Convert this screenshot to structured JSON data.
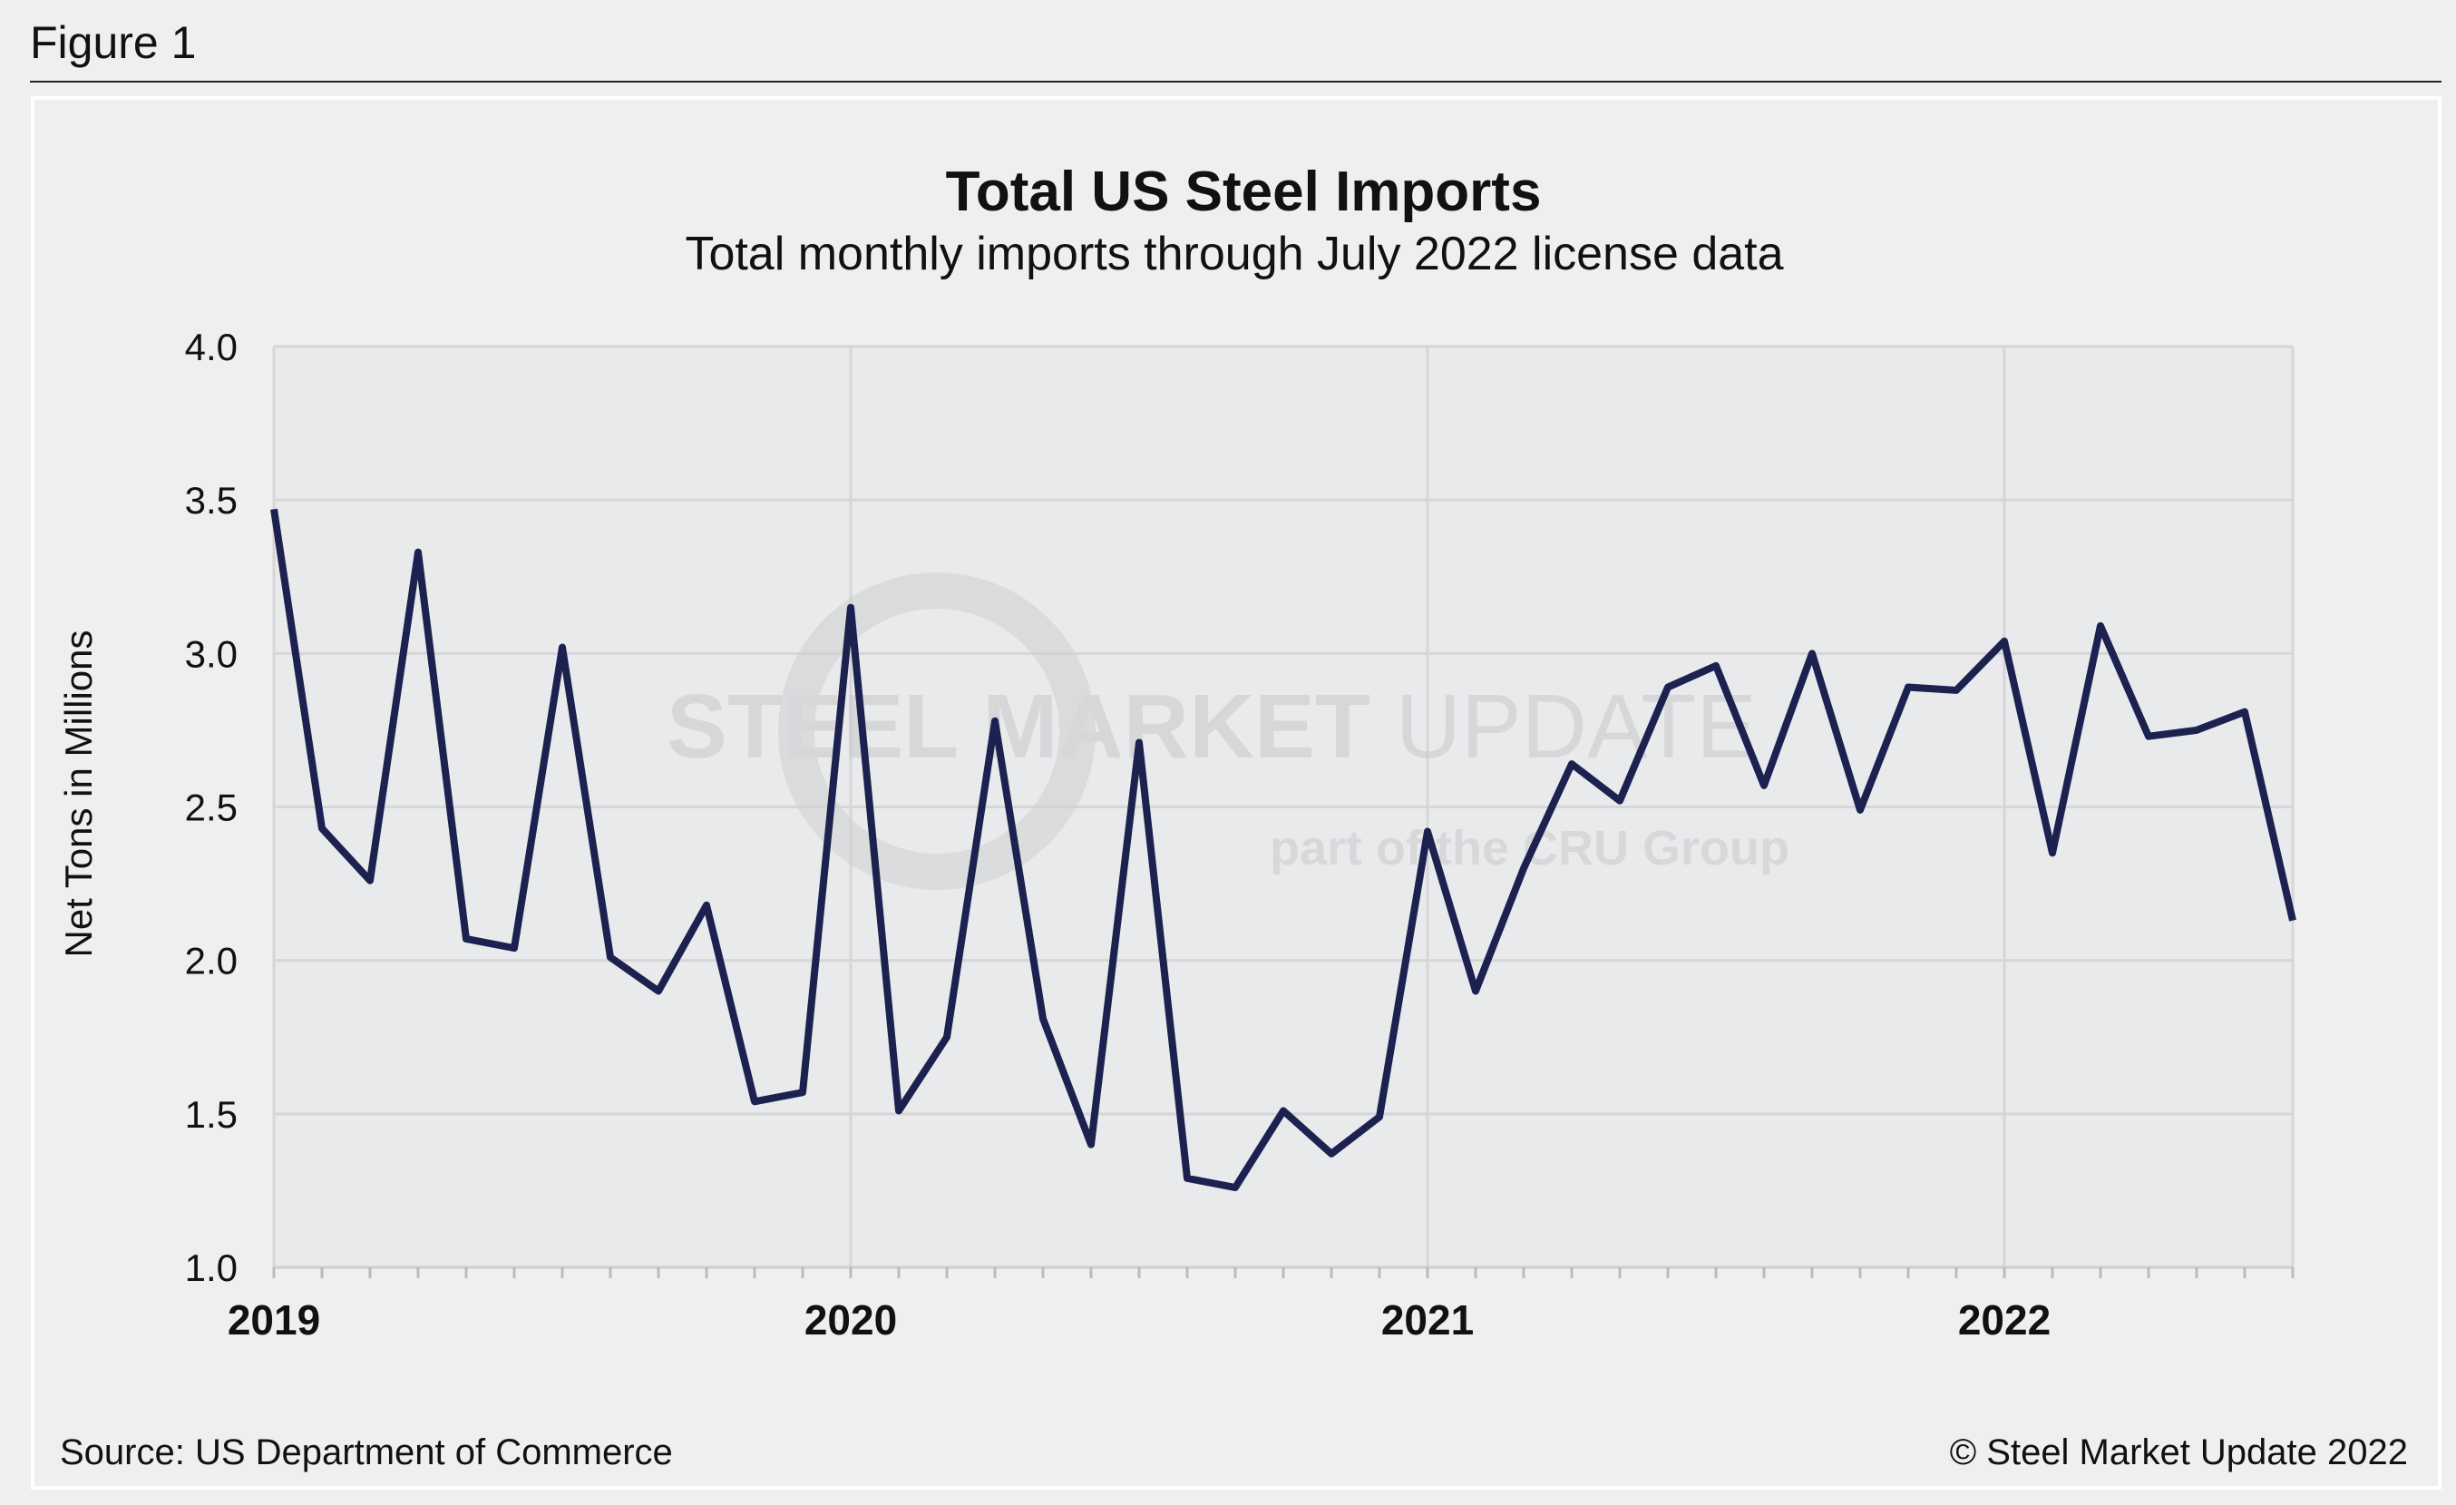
{
  "figure_label": "Figure 1",
  "source": "Source: US Department of Commerce",
  "copyright": "© Steel Market Update 2022",
  "watermark": {
    "line1a": "STEEL",
    "line1b": " MARKET",
    "line1c": " UPDATE",
    "line2a": "part of the ",
    "line2b": "CRU",
    "line2c": " Group"
  },
  "colors": {
    "line": "#1c2150",
    "plot_bg": "#e9eaec",
    "panel_bg": "#efefef",
    "grid": "#d6d6d8"
  },
  "chart_data": {
    "type": "line",
    "title": "Total US Steel Imports",
    "subtitle": "Total monthly imports through July 2022 license data",
    "xlabel": "",
    "ylabel": "Net Tons in Millions",
    "ylim": [
      1.0,
      4.0
    ],
    "yticks": [
      "1.0",
      "1.5",
      "2.0",
      "2.5",
      "3.0",
      "3.5",
      "4.0"
    ],
    "xticks": [
      "2019",
      "2020",
      "2021",
      "2022"
    ],
    "grid": true,
    "x": [
      "2019-01",
      "2019-02",
      "2019-03",
      "2019-04",
      "2019-05",
      "2019-06",
      "2019-07",
      "2019-08",
      "2019-09",
      "2019-10",
      "2019-11",
      "2019-12",
      "2020-01",
      "2020-02",
      "2020-03",
      "2020-04",
      "2020-05",
      "2020-06",
      "2020-07",
      "2020-08",
      "2020-09",
      "2020-10",
      "2020-11",
      "2020-12",
      "2021-01",
      "2021-02",
      "2021-03",
      "2021-04",
      "2021-05",
      "2021-06",
      "2021-07",
      "2021-08",
      "2021-09",
      "2021-10",
      "2021-11",
      "2021-12",
      "2022-01",
      "2022-02",
      "2022-03",
      "2022-04",
      "2022-05",
      "2022-06",
      "2022-07"
    ],
    "values": [
      3.47,
      2.43,
      2.26,
      3.33,
      2.07,
      2.04,
      3.02,
      2.01,
      1.9,
      2.18,
      1.54,
      1.57,
      3.15,
      1.51,
      1.75,
      2.78,
      1.81,
      1.4,
      2.71,
      1.29,
      1.26,
      1.51,
      1.37,
      1.49,
      2.42,
      1.9,
      2.3,
      2.64,
      2.52,
      2.89,
      2.96,
      2.57,
      3.0,
      2.49,
      2.89,
      2.88,
      3.04,
      2.35,
      3.09,
      2.73,
      2.75,
      2.81,
      2.13
    ]
  }
}
